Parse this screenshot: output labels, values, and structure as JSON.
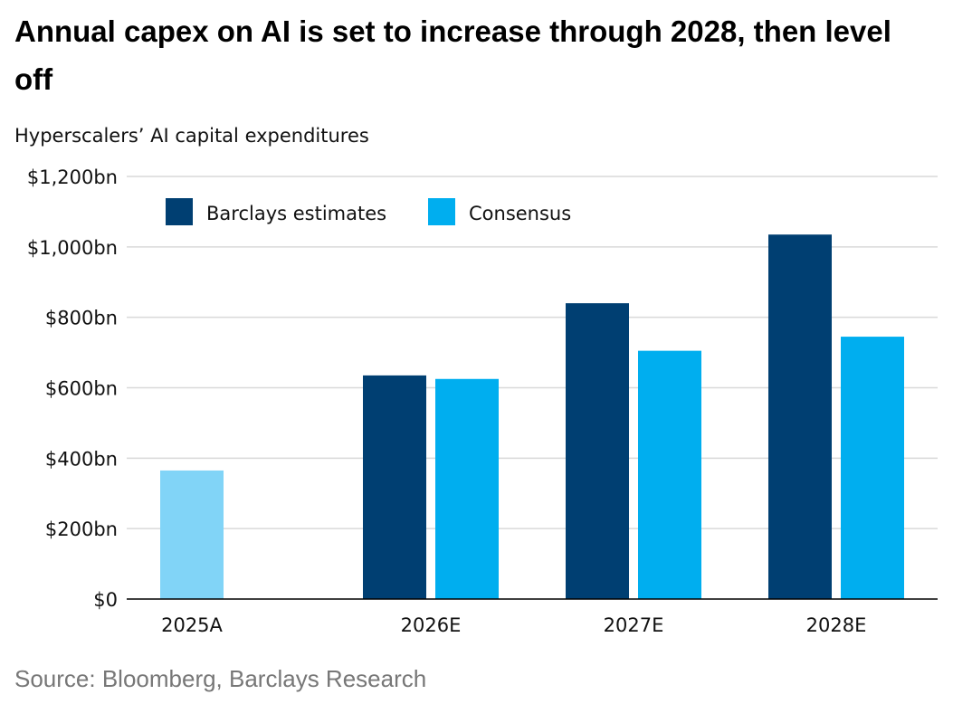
{
  "title": "Annual capex on AI is set to increase through 2028, then level off",
  "subtitle": "Hyperscalers’ AI capital expenditures",
  "source": "Source: Bloomberg, Barclays Research",
  "colors": {
    "barclays": "#003F72",
    "consensus": "#00AEEF",
    "actual": "#81D4F7",
    "grid": "#D9D9D9",
    "axis": "#000000"
  },
  "chart_data": {
    "type": "bar",
    "title": "Annual capex on AI is set to increase through 2028, then level off",
    "ylabel": "Hyperscalers’ AI capital expenditures",
    "xlabel": "",
    "categories": [
      "2025A",
      "2026E",
      "2027E",
      "2028E"
    ],
    "ylim": [
      0,
      1200
    ],
    "yticks": [
      0,
      200,
      400,
      600,
      800,
      1000,
      1200
    ],
    "ytick_labels": [
      "$0",
      "$200bn",
      "$400bn",
      "$600bn",
      "$800bn",
      "$1,000bn",
      "$1,200bn"
    ],
    "grid": true,
    "legend_position": "top-left",
    "series": [
      {
        "name": "Barclays estimates",
        "color_key": "barclays",
        "values": [
          null,
          635,
          840,
          1035
        ]
      },
      {
        "name": "Consensus",
        "color_key": "consensus",
        "values": [
          365,
          625,
          705,
          745
        ]
      }
    ],
    "notes": "2025A bar shown as a single actual value in lighter blue"
  }
}
